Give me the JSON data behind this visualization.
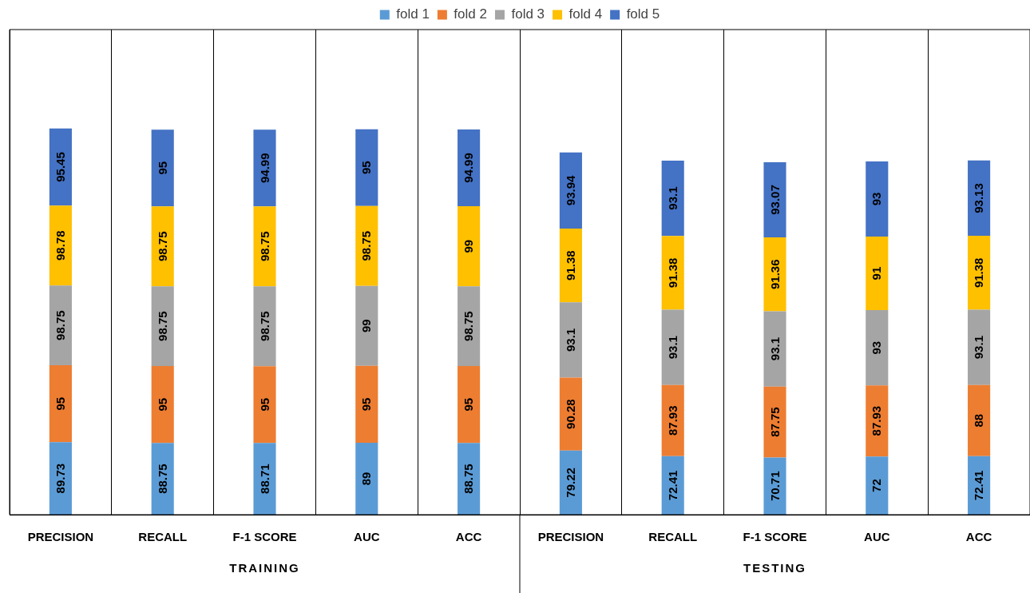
{
  "chart_data": {
    "type": "bar",
    "stacked": true,
    "data_labels": true,
    "grid": "x",
    "legend": "top",
    "tick_labels": "x",
    "categories": [
      "PRECISION",
      "RECALL",
      "F-1 SCORE",
      "AUC",
      "ACC",
      "PRECISION",
      "RECALL",
      "F-1 SCORE",
      "AUC",
      "ACC"
    ],
    "annotations": [
      "TRAINING",
      "TESTING"
    ],
    "series": [
      {
        "name": "fold 1",
        "color": "#5b9bd5",
        "values": [
          89.73,
          88.75,
          88.71,
          89,
          88.75,
          79.22,
          72.41,
          70.71,
          72,
          72.41
        ]
      },
      {
        "name": "fold 2",
        "color": "#ed7d31",
        "values": [
          95,
          95,
          95,
          95,
          95,
          90.28,
          87.93,
          87.75,
          87.93,
          88
        ]
      },
      {
        "name": "fold 3",
        "color": "#a5a5a5",
        "values": [
          98.75,
          98.75,
          98.75,
          99,
          98.75,
          93.1,
          93.1,
          93.1,
          93,
          93.1
        ]
      },
      {
        "name": "fold 4",
        "color": "#ffc000",
        "values": [
          98.78,
          98.75,
          98.75,
          98.75,
          99,
          91.38,
          91.38,
          91.36,
          91,
          91.38
        ]
      },
      {
        "name": "fold 5",
        "color": "#4472c4",
        "values": [
          95.45,
          95,
          94.99,
          95,
          94.99,
          93.94,
          93.1,
          93.07,
          93,
          93.13
        ]
      }
    ]
  }
}
